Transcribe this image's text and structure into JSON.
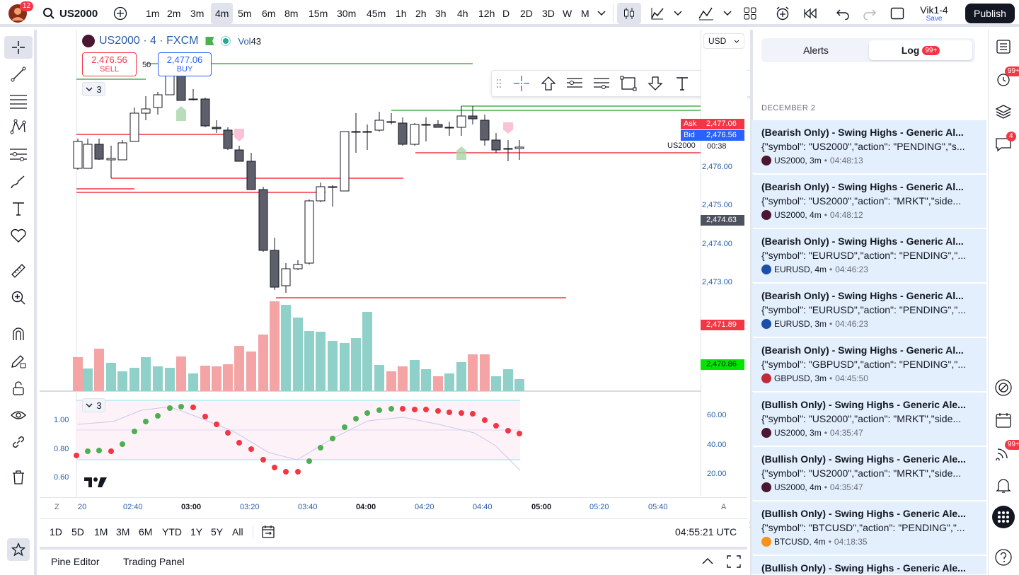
{
  "header": {
    "avatar_badge": "12",
    "symbol": "US2000",
    "timeframes": [
      "1m",
      "2m",
      "3m",
      "4m",
      "5m",
      "6m",
      "8m",
      "15m",
      "30m",
      "45m",
      "1h",
      "2h",
      "3h",
      "4h",
      "12h",
      "D",
      "2D",
      "3D",
      "W",
      "M"
    ],
    "active_timeframe": "4m",
    "layout_name": "Vik1-4",
    "save_label": "Save",
    "publish_label": "Publish"
  },
  "legend": {
    "title": "US2000 · 4 · FXCM",
    "vol_label": "Vol",
    "vol_value": "43",
    "sell_price": "2,476.56",
    "sell_label": "SELL",
    "spread": "50",
    "buy_price": "2,477.06",
    "buy_label": "BUY",
    "collapse_count": "3"
  },
  "price_axis": {
    "currency": "USD",
    "ticks": [
      "2,476.00",
      "2,475.00",
      "2,474.00",
      "2,473.00"
    ],
    "ask_label": "Ask",
    "ask_value": "2,477.06",
    "bid_label": "Bid",
    "bid_value": "2,476.56",
    "symbol_tag": "US2000",
    "countdown": "00:38",
    "crosshair_value": "2,474.63",
    "red_line_value": "2,471.89",
    "green_line_value": "2,470.86"
  },
  "indicator": {
    "collapse_count": "3",
    "left_ticks": [
      "1.00",
      "0.80",
      "0.60"
    ],
    "right_ticks": [
      "60.00",
      "40.00",
      "20.00"
    ]
  },
  "time_axis": {
    "z_label": "Z",
    "a_label": "A",
    "ticks": [
      {
        "t": "20",
        "bold": false
      },
      {
        "t": "02:40",
        "bold": false
      },
      {
        "t": "03:00",
        "bold": true
      },
      {
        "t": "03:20",
        "bold": false
      },
      {
        "t": "03:40",
        "bold": false
      },
      {
        "t": "04:00",
        "bold": true
      },
      {
        "t": "04:20",
        "bold": false
      },
      {
        "t": "04:40",
        "bold": false
      },
      {
        "t": "05:00",
        "bold": true
      },
      {
        "t": "05:20",
        "bold": false
      },
      {
        "t": "05:40",
        "bold": false
      }
    ]
  },
  "bottom_bar": {
    "ranges": [
      "1D",
      "5D",
      "1M",
      "3M",
      "6M",
      "YTD",
      "1Y",
      "5Y",
      "All"
    ],
    "clock": "04:55:21 UTC"
  },
  "bottom_tabs": {
    "pine_editor": "Pine Editor",
    "trading_panel": "Trading Panel"
  },
  "alerts_panel": {
    "tab_alerts": "Alerts",
    "tab_log": "Log",
    "log_badge": "99+",
    "date_header": "DECEMBER 2",
    "items": [
      {
        "title": "(Bearish Only) - Swing Highs - Generic Al...",
        "message": "{\"symbol\": \"US2000\",\"action\": \"PENDING\",\"s...",
        "symbol": "US2000, 3m",
        "time": "04:48:13",
        "color": "#4a1630"
      },
      {
        "title": "(Bearish Only) - Swing Highs - Generic Al...",
        "message": "{\"symbol\": \"US2000\",\"action\": \"MRKT\",\"side...",
        "symbol": "US2000, 4m",
        "time": "04:48:12",
        "color": "#4a1630"
      },
      {
        "title": "(Bearish Only) - Swing Highs - Generic Al...",
        "message": "{\"symbol\": \"EURUSD\",\"action\": \"PENDING\",\"...",
        "symbol": "EURUSD, 4m",
        "time": "04:46:23",
        "color": "#1c4fa8"
      },
      {
        "title": "(Bearish Only) - Swing Highs - Generic Al...",
        "message": "{\"symbol\": \"EURUSD\",\"action\": \"PENDING\",\"...",
        "symbol": "EURUSD, 3m",
        "time": "04:46:23",
        "color": "#1c4fa8"
      },
      {
        "title": "(Bearish Only) - Swing Highs - Generic Al...",
        "message": "{\"symbol\": \"GBPUSD\",\"action\": \"PENDING\",\"...",
        "symbol": "GBPUSD, 3m",
        "time": "04:45:50",
        "color": "#c22a3a"
      },
      {
        "title": "(Bullish Only) - Swing Highs - Generic Ale...",
        "message": "{\"symbol\": \"US2000\",\"action\": \"MRKT\",\"side...",
        "symbol": "US2000, 3m",
        "time": "04:35:47",
        "color": "#4a1630"
      },
      {
        "title": "(Bullish Only) - Swing Highs - Generic Ale...",
        "message": "{\"symbol\": \"US2000\",\"action\": \"MRKT\",\"side...",
        "symbol": "US2000, 4m",
        "time": "04:35:47",
        "color": "#4a1630"
      },
      {
        "title": "(Bullish Only) - Swing Highs - Generic Ale...",
        "message": "{\"symbol\": \"BTCUSD\",\"action\": \"PENDING\",\"...",
        "symbol": "BTCUSD, 4m",
        "time": "04:18:35",
        "color": "#f7931a"
      },
      {
        "title": "(Bullish Only) - Swing Highs - Generic Ale...",
        "message": "",
        "symbol": "",
        "time": "",
        "color": "#4a1630"
      }
    ]
  },
  "right_sidebar": {
    "badge_top": "99+",
    "chat_badge": "4",
    "badge_bottom": "99+"
  },
  "colors": {
    "up": "#ffffff",
    "down": "#5d606b",
    "vol_up": "#8fd1c8",
    "vol_down": "#f4a4a5",
    "red": "#f23645",
    "green": "#4caf50",
    "accent": "#2962ff"
  }
}
